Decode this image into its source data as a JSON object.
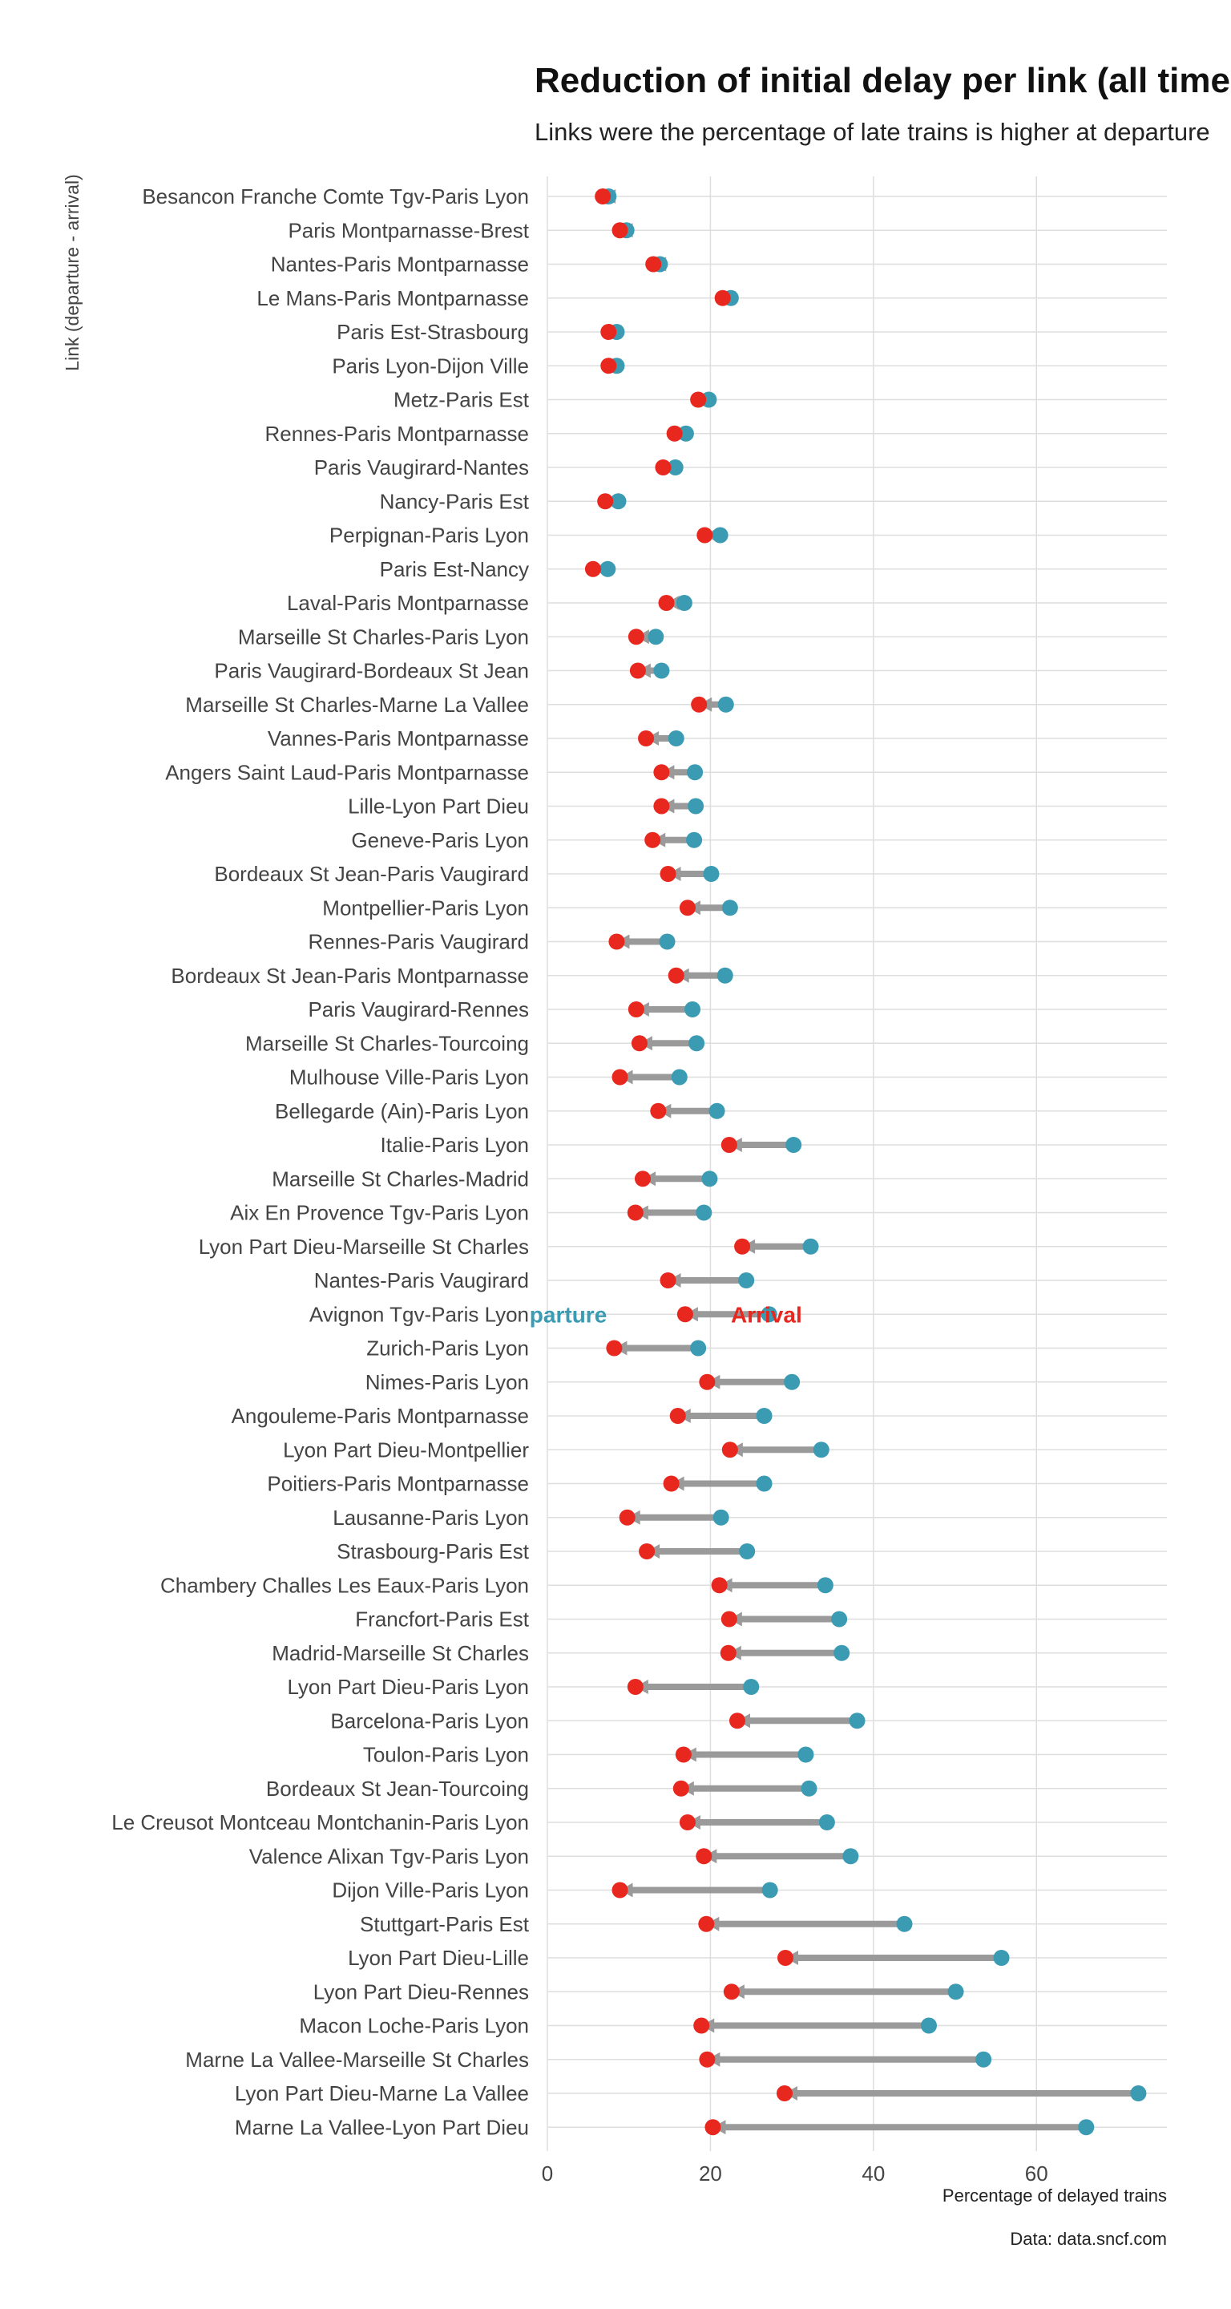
{
  "colors": {
    "departure": "#3a9bb3",
    "arrival": "#e8271e",
    "segment": "#9a9a9a",
    "grid": "#dedede"
  },
  "chart_data": {
    "type": "dumbbell",
    "title": "Reduction of initial delay per link (all time data)",
    "subtitle": "Links were the percentage of late trains is higher at departure",
    "ylabel": "Link (departure - arrival)",
    "xlabel": "Percentage of delayed trains",
    "caption": "Data: data.sncf.com",
    "xlim": [
      0,
      76
    ],
    "xticks": [
      0,
      20,
      40,
      60
    ],
    "grid": true,
    "legend": {
      "departure": "Departure",
      "arrival": "Arrival",
      "label_link": "Avignon Tgv-Paris Lyon"
    },
    "series": [
      {
        "name": "Departure"
      },
      {
        "name": "Arrival"
      }
    ],
    "links": [
      {
        "link": "Besancon Franche Comte Tgv-Paris Lyon",
        "departure": 7.5,
        "arrival": 6.8
      },
      {
        "link": "Paris Montparnasse-Brest",
        "departure": 9.7,
        "arrival": 8.9
      },
      {
        "link": "Nantes-Paris Montparnasse",
        "departure": 13.8,
        "arrival": 13.0
      },
      {
        "link": "Le Mans-Paris Montparnasse",
        "departure": 22.5,
        "arrival": 21.5
      },
      {
        "link": "Paris Est-Strasbourg",
        "departure": 8.5,
        "arrival": 7.5
      },
      {
        "link": "Paris Lyon-Dijon Ville",
        "departure": 8.5,
        "arrival": 7.5
      },
      {
        "link": "Metz-Paris Est",
        "departure": 19.8,
        "arrival": 18.5
      },
      {
        "link": "Rennes-Paris Montparnasse",
        "departure": 17.0,
        "arrival": 15.6
      },
      {
        "link": "Paris Vaugirard-Nantes",
        "departure": 15.7,
        "arrival": 14.2
      },
      {
        "link": "Nancy-Paris Est",
        "departure": 8.7,
        "arrival": 7.1
      },
      {
        "link": "Perpignan-Paris Lyon",
        "departure": 21.2,
        "arrival": 19.3
      },
      {
        "link": "Paris Est-Nancy",
        "departure": 7.4,
        "arrival": 5.6
      },
      {
        "link": "Laval-Paris Montparnasse",
        "departure": 16.8,
        "arrival": 14.6
      },
      {
        "link": "Marseille St Charles-Paris Lyon",
        "departure": 13.3,
        "arrival": 10.9
      },
      {
        "link": "Paris Vaugirard-Bordeaux St Jean",
        "departure": 14.0,
        "arrival": 11.1
      },
      {
        "link": "Marseille St Charles-Marne La Vallee",
        "departure": 21.9,
        "arrival": 18.6
      },
      {
        "link": "Vannes-Paris Montparnasse",
        "departure": 15.8,
        "arrival": 12.1
      },
      {
        "link": "Angers Saint Laud-Paris Montparnasse",
        "departure": 18.1,
        "arrival": 14.0
      },
      {
        "link": "Lille-Lyon Part Dieu",
        "departure": 18.2,
        "arrival": 14.0
      },
      {
        "link": "Geneve-Paris Lyon",
        "departure": 18.0,
        "arrival": 12.9
      },
      {
        "link": "Bordeaux St Jean-Paris Vaugirard",
        "departure": 20.1,
        "arrival": 14.8
      },
      {
        "link": "Montpellier-Paris Lyon",
        "departure": 22.4,
        "arrival": 17.2
      },
      {
        "link": "Rennes-Paris Vaugirard",
        "departure": 14.7,
        "arrival": 8.5
      },
      {
        "link": "Bordeaux St Jean-Paris Montparnasse",
        "departure": 21.8,
        "arrival": 15.8
      },
      {
        "link": "Paris Vaugirard-Rennes",
        "departure": 17.8,
        "arrival": 10.9
      },
      {
        "link": "Marseille St Charles-Tourcoing",
        "departure": 18.3,
        "arrival": 11.3
      },
      {
        "link": "Mulhouse Ville-Paris Lyon",
        "departure": 16.2,
        "arrival": 8.9
      },
      {
        "link": "Bellegarde (Ain)-Paris Lyon",
        "departure": 20.8,
        "arrival": 13.6
      },
      {
        "link": "Italie-Paris Lyon",
        "departure": 30.2,
        "arrival": 22.3
      },
      {
        "link": "Marseille St Charles-Madrid",
        "departure": 19.9,
        "arrival": 11.7
      },
      {
        "link": "Aix En Provence Tgv-Paris Lyon",
        "departure": 19.2,
        "arrival": 10.8
      },
      {
        "link": "Lyon Part Dieu-Marseille St Charles",
        "departure": 32.3,
        "arrival": 23.9
      },
      {
        "link": "Nantes-Paris Vaugirard",
        "departure": 24.4,
        "arrival": 14.8
      },
      {
        "link": "Avignon Tgv-Paris Lyon",
        "departure": 27.2,
        "arrival": 16.9
      },
      {
        "link": "Zurich-Paris Lyon",
        "departure": 18.5,
        "arrival": 8.2
      },
      {
        "link": "Nimes-Paris Lyon",
        "departure": 30.0,
        "arrival": 19.6
      },
      {
        "link": "Angouleme-Paris Montparnasse",
        "departure": 26.6,
        "arrival": 16.0
      },
      {
        "link": "Lyon Part Dieu-Montpellier",
        "departure": 33.6,
        "arrival": 22.4
      },
      {
        "link": "Poitiers-Paris Montparnasse",
        "departure": 26.6,
        "arrival": 15.2
      },
      {
        "link": "Lausanne-Paris Lyon",
        "departure": 21.3,
        "arrival": 9.8
      },
      {
        "link": "Strasbourg-Paris Est",
        "departure": 24.5,
        "arrival": 12.2
      },
      {
        "link": "Chambery Challes Les Eaux-Paris Lyon",
        "departure": 34.1,
        "arrival": 21.1
      },
      {
        "link": "Francfort-Paris Est",
        "departure": 35.8,
        "arrival": 22.3
      },
      {
        "link": "Madrid-Marseille St Charles",
        "departure": 36.1,
        "arrival": 22.2
      },
      {
        "link": "Lyon Part Dieu-Paris Lyon",
        "departure": 25.0,
        "arrival": 10.8
      },
      {
        "link": "Barcelona-Paris Lyon",
        "departure": 38.0,
        "arrival": 23.3
      },
      {
        "link": "Toulon-Paris Lyon",
        "departure": 31.7,
        "arrival": 16.7
      },
      {
        "link": "Bordeaux St Jean-Tourcoing",
        "departure": 32.1,
        "arrival": 16.4
      },
      {
        "link": "Le Creusot Montceau Montchanin-Paris Lyon",
        "departure": 34.3,
        "arrival": 17.2
      },
      {
        "link": "Valence Alixan Tgv-Paris Lyon",
        "departure": 37.2,
        "arrival": 19.2
      },
      {
        "link": "Dijon Ville-Paris Lyon",
        "departure": 27.3,
        "arrival": 8.9
      },
      {
        "link": "Stuttgart-Paris Est",
        "departure": 43.8,
        "arrival": 19.5
      },
      {
        "link": "Lyon Part Dieu-Lille",
        "departure": 55.7,
        "arrival": 29.2
      },
      {
        "link": "Lyon Part Dieu-Rennes",
        "departure": 50.1,
        "arrival": 22.6
      },
      {
        "link": "Macon Loche-Paris Lyon",
        "departure": 46.8,
        "arrival": 18.9
      },
      {
        "link": "Marne La Vallee-Marseille St Charles",
        "departure": 53.5,
        "arrival": 19.6
      },
      {
        "link": "Lyon Part Dieu-Marne La Vallee",
        "departure": 72.5,
        "arrival": 29.1
      },
      {
        "link": "Marne La Vallee-Lyon Part Dieu",
        "departure": 66.1,
        "arrival": 20.3
      }
    ]
  }
}
